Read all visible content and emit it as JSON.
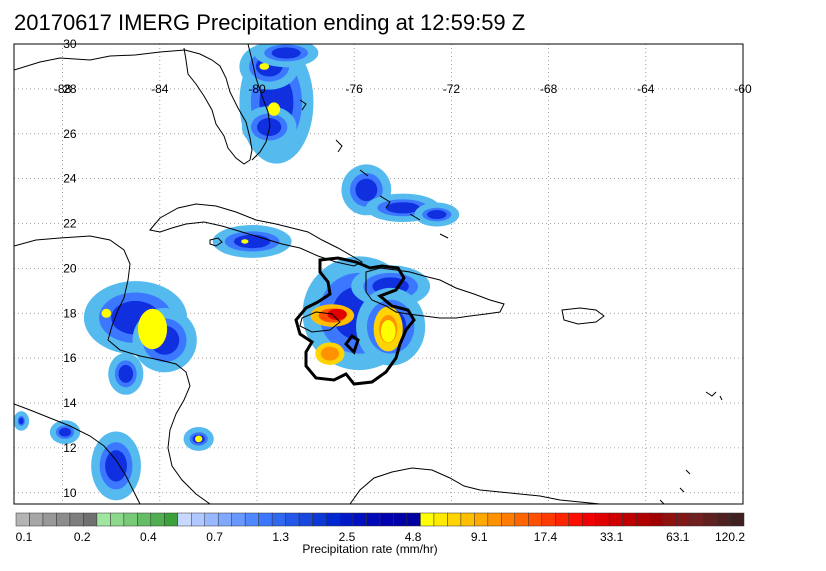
{
  "title": "20170617 IMERG Precipitation ending at 12:59:59 Z",
  "map": {
    "lon_range": [
      -90,
      -60
    ],
    "lat_range": [
      9.5,
      30
    ],
    "lon_ticks": [
      -88,
      -84,
      -80,
      -76,
      -72,
      -68,
      -64,
      -60
    ],
    "lat_ticks": [
      10,
      12,
      14,
      16,
      18,
      20,
      22,
      24,
      26,
      28,
      30
    ],
    "grid": "dotted"
  },
  "colorbar": {
    "title": "Precipitation rate (mm/hr)",
    "tick_labels": [
      "0.1",
      "0.2",
      "0.4",
      "0.7",
      "1.3",
      "2.5",
      "4.8",
      "9.1",
      "17.4",
      "33.1",
      "63.1",
      "120.2"
    ],
    "colors": [
      "#b4b4b4",
      "#a6a6a6",
      "#989898",
      "#8c8c8c",
      "#7e7e7e",
      "#707070",
      "#a0e6a0",
      "#8cd88c",
      "#78ca78",
      "#64bc64",
      "#50ae50",
      "#3ca03c",
      "#c8d8ff",
      "#b0c8ff",
      "#98b8ff",
      "#80a8ff",
      "#6898ff",
      "#5088ff",
      "#3c78ff",
      "#3068f0",
      "#2458e8",
      "#1848e0",
      "#0c38d8",
      "#0028d0",
      "#0018c8",
      "#0010c0",
      "#0008b8",
      "#0000b0",
      "#0000a8",
      "#0000a0",
      "#ffff00",
      "#ffea00",
      "#ffd400",
      "#ffbe00",
      "#ffa800",
      "#ff9200",
      "#ff7c00",
      "#ff6600",
      "#ff5000",
      "#ff3a00",
      "#ff2400",
      "#ff0e00",
      "#f00000",
      "#e00000",
      "#d00000",
      "#c00000",
      "#b00000",
      "#a00000",
      "#901010",
      "#801818",
      "#702020",
      "#602020",
      "#502020",
      "#402020"
    ]
  },
  "precip_cells": [
    {
      "lon": -79.2,
      "lat": 27.4,
      "rx": 1.4,
      "ry": 2.6,
      "level": "blue"
    },
    {
      "lon": -79.5,
      "lat": 26.3,
      "rx": 1.0,
      "ry": 0.8,
      "level": "blue"
    },
    {
      "lon": -79.5,
      "lat": 29.0,
      "rx": 1.1,
      "ry": 0.9,
      "level": "blue"
    },
    {
      "lon": -78.8,
      "lat": 29.6,
      "rx": 1.2,
      "ry": 0.5,
      "level": "blue"
    },
    {
      "lon": -79.3,
      "lat": 27.1,
      "rx": 0.25,
      "ry": 0.3,
      "level": "yellow"
    },
    {
      "lon": -79.7,
      "lat": 29.0,
      "rx": 0.2,
      "ry": 0.15,
      "level": "yellow"
    },
    {
      "lon": -75.5,
      "lat": 23.5,
      "rx": 0.9,
      "ry": 1.0,
      "level": "blue"
    },
    {
      "lon": -74.0,
      "lat": 22.7,
      "rx": 1.4,
      "ry": 0.5,
      "level": "blue"
    },
    {
      "lon": -72.6,
      "lat": 22.4,
      "rx": 0.8,
      "ry": 0.4,
      "level": "blue"
    },
    {
      "lon": -80.2,
      "lat": 21.2,
      "rx": 1.5,
      "ry": 0.6,
      "level": "blue"
    },
    {
      "lon": -80.5,
      "lat": 21.2,
      "rx": 0.15,
      "ry": 0.1,
      "level": "yellow"
    },
    {
      "lon": -75.8,
      "lat": 18.0,
      "rx": 2.2,
      "ry": 2.4,
      "level": "blue"
    },
    {
      "lon": -74.5,
      "lat": 19.2,
      "rx": 1.5,
      "ry": 0.8,
      "level": "blue"
    },
    {
      "lon": -74.5,
      "lat": 17.4,
      "rx": 1.3,
      "ry": 1.6,
      "level": "blue"
    },
    {
      "lon": -76.9,
      "lat": 17.9,
      "rx": 0.9,
      "ry": 0.5,
      "level": "red"
    },
    {
      "lon": -76.7,
      "lat": 17.95,
      "rx": 0.4,
      "ry": 0.25,
      "level": "deep-red"
    },
    {
      "lon": -74.6,
      "lat": 17.3,
      "rx": 0.6,
      "ry": 1.0,
      "level": "orange"
    },
    {
      "lon": -74.6,
      "lat": 17.2,
      "rx": 0.3,
      "ry": 0.5,
      "level": "yellow"
    },
    {
      "lon": -77.0,
      "lat": 16.2,
      "rx": 0.6,
      "ry": 0.5,
      "level": "orange"
    },
    {
      "lon": -85.0,
      "lat": 17.8,
      "rx": 2.0,
      "ry": 1.5,
      "level": "blue"
    },
    {
      "lon": -83.8,
      "lat": 16.8,
      "rx": 1.2,
      "ry": 1.3,
      "level": "blue"
    },
    {
      "lon": -84.3,
      "lat": 17.3,
      "rx": 0.6,
      "ry": 0.9,
      "level": "yellow"
    },
    {
      "lon": -86.2,
      "lat": 18.0,
      "rx": 0.2,
      "ry": 0.2,
      "level": "yellow"
    },
    {
      "lon": -85.4,
      "lat": 15.3,
      "rx": 0.6,
      "ry": 0.8,
      "level": "blue"
    },
    {
      "lon": -87.9,
      "lat": 12.7,
      "rx": 0.5,
      "ry": 0.4,
      "level": "blue"
    },
    {
      "lon": -82.4,
      "lat": 12.4,
      "rx": 0.5,
      "ry": 0.4,
      "level": "blue"
    },
    {
      "lon": -82.4,
      "lat": 12.4,
      "rx": 0.15,
      "ry": 0.15,
      "level": "yellow"
    },
    {
      "lon": -85.8,
      "lat": 11.2,
      "rx": 0.9,
      "ry": 1.4,
      "level": "blue"
    },
    {
      "lon": -89.7,
      "lat": 13.2,
      "rx": 0.2,
      "ry": 0.3,
      "level": "blue"
    }
  ]
}
